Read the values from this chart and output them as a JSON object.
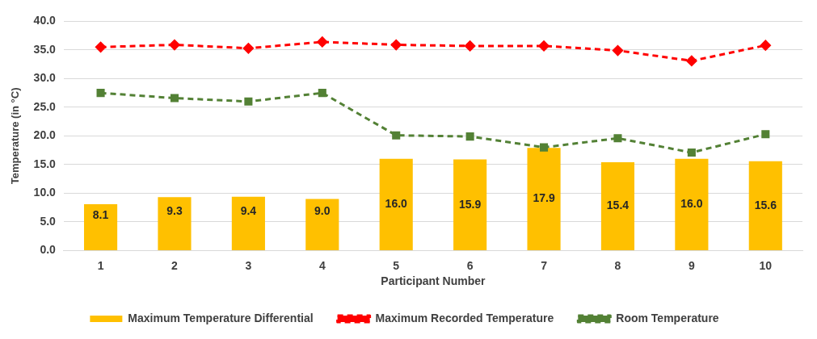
{
  "chart_data": {
    "type": "bar",
    "xlabel": "Participant Number",
    "ylabel": "Temperature (in °C)",
    "categories": [
      "1",
      "2",
      "3",
      "4",
      "5",
      "6",
      "7",
      "8",
      "9",
      "10"
    ],
    "series": [
      {
        "name": "Maximum Temperature Differential",
        "color": "#ffc000",
        "values": [
          8.1,
          9.3,
          9.4,
          9.0,
          16.0,
          15.9,
          17.9,
          15.4,
          16.0,
          15.6
        ],
        "value_labels": [
          "8.1",
          "9.3",
          "9.4",
          "9.0",
          "16.0",
          "15.9",
          "17.9",
          "15.4",
          "16.0",
          "15.6"
        ]
      },
      {
        "name": "Maximum Recorded Temperature",
        "type": "line",
        "color": "#ff0000",
        "marker": "diamond",
        "line_style": "dashed",
        "values": [
          35.5,
          35.9,
          35.3,
          36.4,
          35.9,
          35.7,
          35.7,
          34.9,
          33.1,
          35.8
        ]
      },
      {
        "name": "Room Temperature",
        "type": "line",
        "color": "#538135",
        "marker": "square",
        "line_style": "dashed",
        "values": [
          27.5,
          26.6,
          26.0,
          27.5,
          20.1,
          19.9,
          18.0,
          19.6,
          17.1,
          20.3
        ]
      }
    ],
    "ylim": [
      0,
      40
    ],
    "yticks": [
      {
        "value": 0,
        "label": "0.0"
      },
      {
        "value": 5,
        "label": "5.0"
      },
      {
        "value": 10,
        "label": "10.0"
      },
      {
        "value": 15,
        "label": "15.0"
      },
      {
        "value": 20,
        "label": "20.0"
      },
      {
        "value": 25,
        "label": "25.0"
      },
      {
        "value": 30,
        "label": "30.0"
      },
      {
        "value": 35,
        "label": "35.0"
      },
      {
        "value": 40,
        "label": "40.0"
      }
    ],
    "grid": "y",
    "legend": "bottom"
  }
}
